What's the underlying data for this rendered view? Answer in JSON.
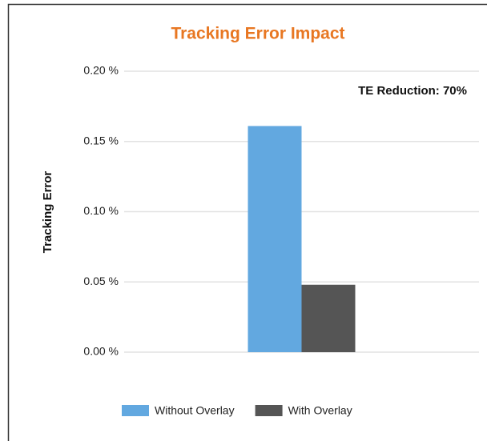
{
  "chart_data": {
    "type": "bar",
    "title": "Tracking Error Impact",
    "annotation": "TE Reduction: 70%",
    "y_label": "Tracking Error",
    "categories": [
      null
    ],
    "series": [
      {
        "name": "Without Overlay",
        "color": "#62a8e0",
        "values": [
          0.161
        ]
      },
      {
        "name": "With Overlay",
        "color": "#555555",
        "values": [
          0.048
        ]
      }
    ],
    "ylim": [
      0,
      0.2
    ],
    "yticks": [
      {
        "value": 0,
        "label": "0.00 %"
      },
      {
        "value": 0.05,
        "label": "0.05 %"
      },
      {
        "value": 0.1,
        "label": "0.10 %"
      },
      {
        "value": 0.15,
        "label": "0.15 %"
      },
      {
        "value": 0.2,
        "label": "0.20 %"
      }
    ],
    "grid": true,
    "legend": "bottom"
  }
}
